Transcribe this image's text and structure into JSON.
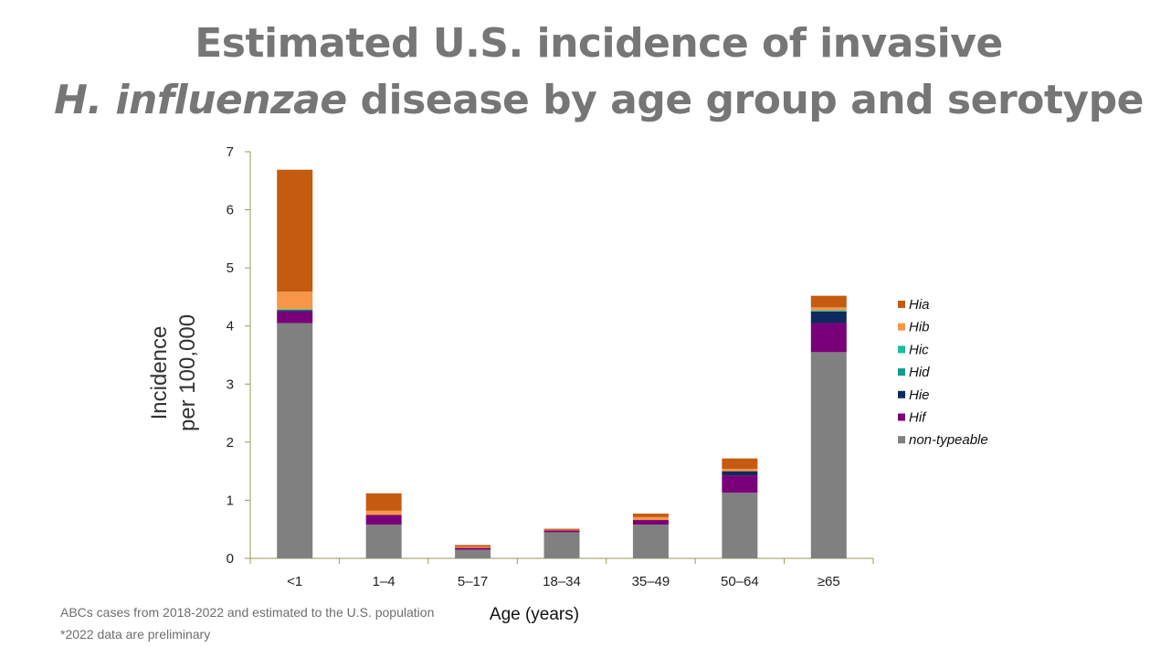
{
  "title": {
    "line1": "Estimated U.S. incidence of invasive",
    "line2_italic": "H. influenzae",
    "line2_rest": " disease by age group and serotype"
  },
  "footnotes": {
    "line1": "ABCs cases from 2018-2022 and estimated to the U.S. population",
    "line2": "*2022 data are preliminary"
  },
  "colors": {
    "Hia": "#C55A11",
    "Hib": "#F79646",
    "Hic": "#1ABC9C",
    "Hid": "#149A8A",
    "Hie": "#0E2A5E",
    "Hif": "#7A007A",
    "non-typeable": "#808080",
    "axis": "#9A9A55"
  },
  "chart_data": {
    "type": "bar",
    "stacked": true,
    "title": "Estimated U.S. incidence of invasive H. influenzae disease by age group and serotype",
    "xlabel": "Age (years)",
    "ylabel_line1": "Incidence",
    "ylabel_line2": "per 100,000",
    "ylim": [
      0,
      7
    ],
    "yticks": [
      "0",
      "1",
      "2",
      "3",
      "4",
      "5",
      "6",
      "7"
    ],
    "categories": [
      "<1",
      "1–4",
      "5–17",
      "18–34",
      "35–49",
      "50–64",
      "≥65"
    ],
    "legend_position": "right",
    "series": [
      {
        "name": "non-typeable",
        "values": [
          4.05,
          0.58,
          0.15,
          0.45,
          0.58,
          1.13,
          3.55
        ]
      },
      {
        "name": "Hif",
        "values": [
          0.2,
          0.17,
          0.03,
          0.03,
          0.08,
          0.3,
          0.5
        ]
      },
      {
        "name": "Hie",
        "values": [
          0.02,
          0.0,
          0.0,
          0.0,
          0.0,
          0.07,
          0.2
        ]
      },
      {
        "name": "Hid",
        "values": [
          0.01,
          0.0,
          0.0,
          0.0,
          0.0,
          0.0,
          0.01
        ]
      },
      {
        "name": "Hic",
        "values": [
          0.01,
          0.0,
          0.0,
          0.0,
          0.0,
          0.0,
          0.01
        ]
      },
      {
        "name": "Hib",
        "values": [
          0.3,
          0.07,
          0.02,
          0.01,
          0.05,
          0.04,
          0.05
        ]
      },
      {
        "name": "Hia",
        "values": [
          2.1,
          0.3,
          0.03,
          0.02,
          0.06,
          0.18,
          0.2
        ]
      }
    ],
    "legend_order": [
      "Hia",
      "Hib",
      "Hic",
      "Hid",
      "Hie",
      "Hif",
      "non-typeable"
    ]
  }
}
